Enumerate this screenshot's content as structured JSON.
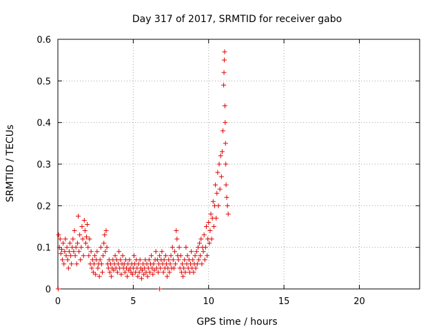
{
  "chart_data": {
    "type": "scatter",
    "title": "Day 317 of 2017, SRMTID for receiver gabo",
    "xlabel": "GPS time / hours",
    "ylabel": "SRMTID / TECUs",
    "xlim": [
      0,
      24
    ],
    "ylim": [
      0,
      0.6
    ],
    "xticks": [
      0,
      5,
      10,
      15,
      20
    ],
    "yticks": [
      0,
      0.1,
      0.2,
      0.3,
      0.4,
      0.5,
      0.6
    ],
    "xtick_labels": [
      "0",
      "5",
      "10",
      "15",
      "20"
    ],
    "ytick_labels": [
      "0",
      "0.1",
      "0.2",
      "0.3",
      "0.4",
      "0.5",
      "0.6"
    ],
    "grid": true,
    "marker": "+",
    "series": [
      {
        "name": "SRMTID",
        "color": "#e00000",
        "points": [
          [
            0.02,
            0.0
          ],
          [
            6.75,
            0.0
          ],
          [
            0.05,
            0.13
          ],
          [
            0.1,
            0.1
          ],
          [
            0.15,
            0.12
          ],
          [
            0.2,
            0.085
          ],
          [
            0.25,
            0.095
          ],
          [
            0.3,
            0.07
          ],
          [
            0.35,
            0.11
          ],
          [
            0.4,
            0.06
          ],
          [
            0.45,
            0.09
          ],
          [
            0.5,
            0.12
          ],
          [
            0.55,
            0.08
          ],
          [
            0.6,
            0.1
          ],
          [
            0.65,
            0.07
          ],
          [
            0.7,
            0.05
          ],
          [
            0.75,
            0.09
          ],
          [
            0.8,
            0.11
          ],
          [
            0.85,
            0.08
          ],
          [
            0.9,
            0.06
          ],
          [
            0.95,
            0.1
          ],
          [
            1.0,
            0.12
          ],
          [
            1.05,
            0.09
          ],
          [
            1.1,
            0.14
          ],
          [
            1.15,
            0.08
          ],
          [
            1.2,
            0.1
          ],
          [
            1.25,
            0.06
          ],
          [
            1.3,
            0.11
          ],
          [
            1.35,
            0.175
          ],
          [
            1.4,
            0.09
          ],
          [
            1.45,
            0.13
          ],
          [
            1.5,
            0.07
          ],
          [
            1.55,
            0.1
          ],
          [
            1.6,
            0.15
          ],
          [
            1.65,
            0.12
          ],
          [
            1.7,
            0.08
          ],
          [
            1.75,
            0.165
          ],
          [
            1.8,
            0.14
          ],
          [
            1.85,
            0.11
          ],
          [
            1.9,
            0.125
          ],
          [
            1.95,
            0.155
          ],
          [
            2.0,
            0.1
          ],
          [
            2.05,
            0.08
          ],
          [
            2.1,
            0.12
          ],
          [
            2.15,
            0.06
          ],
          [
            2.2,
            0.09
          ],
          [
            2.25,
            0.05
          ],
          [
            2.3,
            0.07
          ],
          [
            2.35,
            0.04
          ],
          [
            2.4,
            0.06
          ],
          [
            2.45,
            0.08
          ],
          [
            2.5,
            0.035
          ],
          [
            2.55,
            0.07
          ],
          [
            2.6,
            0.09
          ],
          [
            2.65,
            0.05
          ],
          [
            2.7,
            0.06
          ],
          [
            2.75,
            0.03
          ],
          [
            2.8,
            0.07
          ],
          [
            2.85,
            0.1
          ],
          [
            2.9,
            0.06
          ],
          [
            2.95,
            0.04
          ],
          [
            3.0,
            0.08
          ],
          [
            3.05,
            0.11
          ],
          [
            3.1,
            0.13
          ],
          [
            3.15,
            0.09
          ],
          [
            3.2,
            0.14
          ],
          [
            3.25,
            0.1
          ],
          [
            3.3,
            0.06
          ],
          [
            3.35,
            0.05
          ],
          [
            3.4,
            0.07
          ],
          [
            3.45,
            0.04
          ],
          [
            3.5,
            0.06
          ],
          [
            3.55,
            0.03
          ],
          [
            3.6,
            0.05
          ],
          [
            3.65,
            0.07
          ],
          [
            3.7,
            0.045
          ],
          [
            3.75,
            0.06
          ],
          [
            3.8,
            0.08
          ],
          [
            3.85,
            0.05
          ],
          [
            3.9,
            0.07
          ],
          [
            3.95,
            0.04
          ],
          [
            4.0,
            0.06
          ],
          [
            4.05,
            0.09
          ],
          [
            4.1,
            0.05
          ],
          [
            4.15,
            0.07
          ],
          [
            4.2,
            0.035
          ],
          [
            4.25,
            0.06
          ],
          [
            4.3,
            0.08
          ],
          [
            4.35,
            0.05
          ],
          [
            4.4,
            0.06
          ],
          [
            4.45,
            0.04
          ],
          [
            4.5,
            0.07
          ],
          [
            4.55,
            0.05
          ],
          [
            4.6,
            0.03
          ],
          [
            4.65,
            0.06
          ],
          [
            4.7,
            0.045
          ],
          [
            4.75,
            0.07
          ],
          [
            4.8,
            0.05
          ],
          [
            4.85,
            0.04
          ],
          [
            4.9,
            0.06
          ],
          [
            4.95,
            0.035
          ],
          [
            5.0,
            0.05
          ],
          [
            5.05,
            0.08
          ],
          [
            5.1,
            0.06
          ],
          [
            5.15,
            0.04
          ],
          [
            5.2,
            0.07
          ],
          [
            5.25,
            0.05
          ],
          [
            5.3,
            0.03
          ],
          [
            5.35,
            0.06
          ],
          [
            5.4,
            0.04
          ],
          [
            5.45,
            0.07
          ],
          [
            5.5,
            0.05
          ],
          [
            5.55,
            0.025
          ],
          [
            5.6,
            0.045
          ],
          [
            5.65,
            0.06
          ],
          [
            5.7,
            0.035
          ],
          [
            5.75,
            0.05
          ],
          [
            5.8,
            0.07
          ],
          [
            5.85,
            0.04
          ],
          [
            5.9,
            0.06
          ],
          [
            5.95,
            0.03
          ],
          [
            6.0,
            0.05
          ],
          [
            6.05,
            0.07
          ],
          [
            6.1,
            0.04
          ],
          [
            6.15,
            0.06
          ],
          [
            6.2,
            0.08
          ],
          [
            6.25,
            0.05
          ],
          [
            6.3,
            0.035
          ],
          [
            6.35,
            0.06
          ],
          [
            6.4,
            0.045
          ],
          [
            6.45,
            0.07
          ],
          [
            6.5,
            0.09
          ],
          [
            6.55,
            0.05
          ],
          [
            6.6,
            0.07
          ],
          [
            6.65,
            0.04
          ],
          [
            6.7,
            0.06
          ],
          [
            6.75,
            0.08
          ],
          [
            6.8,
            0.05
          ],
          [
            6.85,
            0.07
          ],
          [
            6.9,
            0.09
          ],
          [
            6.95,
            0.06
          ],
          [
            7.0,
            0.04
          ],
          [
            7.05,
            0.07
          ],
          [
            7.1,
            0.05
          ],
          [
            7.15,
            0.08
          ],
          [
            7.2,
            0.06
          ],
          [
            7.25,
            0.03
          ],
          [
            7.3,
            0.05
          ],
          [
            7.35,
            0.07
          ],
          [
            7.4,
            0.04
          ],
          [
            7.45,
            0.06
          ],
          [
            7.5,
            0.08
          ],
          [
            7.55,
            0.05
          ],
          [
            7.6,
            0.1
          ],
          [
            7.65,
            0.07
          ],
          [
            7.7,
            0.05
          ],
          [
            7.75,
            0.09
          ],
          [
            7.8,
            0.06
          ],
          [
            7.85,
            0.14
          ],
          [
            7.9,
            0.12
          ],
          [
            7.95,
            0.08
          ],
          [
            8.0,
            0.07
          ],
          [
            8.05,
            0.1
          ],
          [
            8.1,
            0.05
          ],
          [
            8.15,
            0.08
          ],
          [
            8.2,
            0.04
          ],
          [
            8.25,
            0.06
          ],
          [
            8.3,
            0.03
          ],
          [
            8.35,
            0.05
          ],
          [
            8.4,
            0.07
          ],
          [
            8.45,
            0.04
          ],
          [
            8.5,
            0.1
          ],
          [
            8.55,
            0.06
          ],
          [
            8.6,
            0.08
          ],
          [
            8.65,
            0.05
          ],
          [
            8.7,
            0.07
          ],
          [
            8.75,
            0.04
          ],
          [
            8.8,
            0.06
          ],
          [
            8.85,
            0.09
          ],
          [
            8.9,
            0.05
          ],
          [
            8.95,
            0.07
          ],
          [
            9.0,
            0.04
          ],
          [
            9.05,
            0.06
          ],
          [
            9.1,
            0.08
          ],
          [
            9.15,
            0.05
          ],
          [
            9.2,
            0.09
          ],
          [
            9.25,
            0.06
          ],
          [
            9.3,
            0.1
          ],
          [
            9.35,
            0.07
          ],
          [
            9.4,
            0.11
          ],
          [
            9.45,
            0.08
          ],
          [
            9.5,
            0.12
          ],
          [
            9.55,
            0.06
          ],
          [
            9.6,
            0.1
          ],
          [
            9.65,
            0.09
          ],
          [
            9.7,
            0.13
          ],
          [
            9.75,
            0.07
          ],
          [
            9.8,
            0.1
          ],
          [
            9.85,
            0.15
          ],
          [
            9.9,
            0.08
          ],
          [
            9.95,
            0.12
          ],
          [
            10.0,
            0.16
          ],
          [
            10.05,
            0.11
          ],
          [
            10.1,
            0.14
          ],
          [
            10.15,
            0.18
          ],
          [
            10.2,
            0.12
          ],
          [
            10.25,
            0.17
          ],
          [
            10.3,
            0.21
          ],
          [
            10.35,
            0.15
          ],
          [
            10.4,
            0.2
          ],
          [
            10.45,
            0.25
          ],
          [
            10.5,
            0.17
          ],
          [
            10.55,
            0.23
          ],
          [
            10.6,
            0.28
          ],
          [
            10.65,
            0.2
          ],
          [
            10.7,
            0.3
          ],
          [
            10.75,
            0.24
          ],
          [
            10.8,
            0.32
          ],
          [
            10.85,
            0.27
          ],
          [
            10.9,
            0.33
          ],
          [
            10.95,
            0.38
          ],
          [
            11.0,
            0.49
          ],
          [
            11.02,
            0.52
          ],
          [
            11.04,
            0.55
          ],
          [
            11.06,
            0.57
          ],
          [
            11.08,
            0.44
          ],
          [
            11.1,
            0.4
          ],
          [
            11.12,
            0.35
          ],
          [
            11.14,
            0.3
          ],
          [
            11.16,
            0.25
          ],
          [
            11.2,
            0.22
          ],
          [
            11.25,
            0.2
          ],
          [
            11.3,
            0.18
          ]
        ]
      }
    ]
  }
}
